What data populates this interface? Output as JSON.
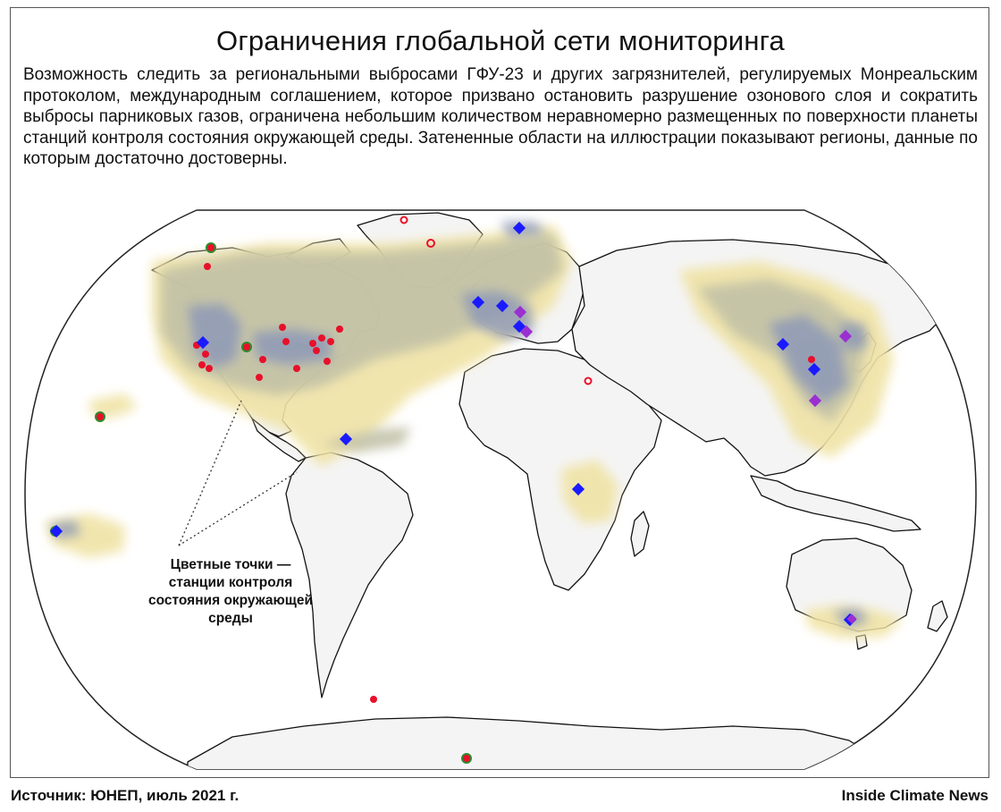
{
  "title": "Ограничения глобальной сети мониторинга",
  "description": "Возможность следить за региональными выбросами ГФУ-23 и других загрязнителей, регулируемых Монреальским протоколом, международным соглашением, которое призвано остановить разрушение озонового слоя и сократить выбросы парниковых газов, ограничена небольшим количеством неравномерно размещенных по поверхности планеты станций контроля состояния окружающей среды. Затененные области на иллюстрации показывают регионы, данные по которым достаточно достоверны.",
  "callout": "Цветные точки — станции контроля состояния окружающей среды",
  "footer": {
    "source": "Источник: ЮНЕП, июль 2021 г.",
    "brand": "Inside Climate News"
  },
  "colors": {
    "land": "#f4f4f4",
    "ocean": "#ffffff",
    "coverage_low": "#f0e3a6",
    "coverage_mid": "#bfbfa6",
    "coverage_high": "#8a96b8",
    "station_red": "#e8102a",
    "station_blue": "#1a1aff",
    "station_purple": "#9a30d0",
    "station_ring_green": "#2e8b2e"
  },
  "station_marker_types": [
    "red-dot",
    "red-ring",
    "green-ring",
    "blue-diamond",
    "purple-diamond"
  ]
}
